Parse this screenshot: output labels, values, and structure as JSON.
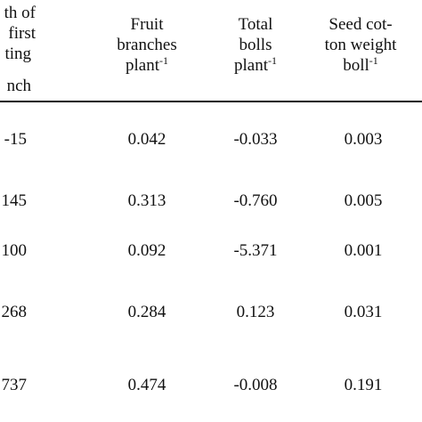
{
  "table": {
    "columns": [
      {
        "lines": [
          "th of",
          "first",
          "ting",
          "nch"
        ]
      },
      {
        "lines": [
          "Fruit",
          "branches",
          "plant"
        ],
        "sup": "-1"
      },
      {
        "lines": [
          "Total",
          "bolls",
          "plant"
        ],
        "sup": "-1"
      },
      {
        "lines": [
          "Seed cot-",
          "ton weight",
          "boll"
        ],
        "sup": "-1"
      }
    ],
    "rows": [
      [
        "-15",
        "0.042",
        "-0.033",
        "0.003"
      ],
      [
        "145",
        "0.313",
        "-0.760",
        "0.005"
      ],
      [
        "100",
        "0.092",
        "-5.371",
        "0.001"
      ],
      [
        "268",
        "0.284",
        "0.123",
        "0.031"
      ],
      [
        "737",
        "0.474",
        "-0.008",
        "0.191"
      ]
    ]
  }
}
